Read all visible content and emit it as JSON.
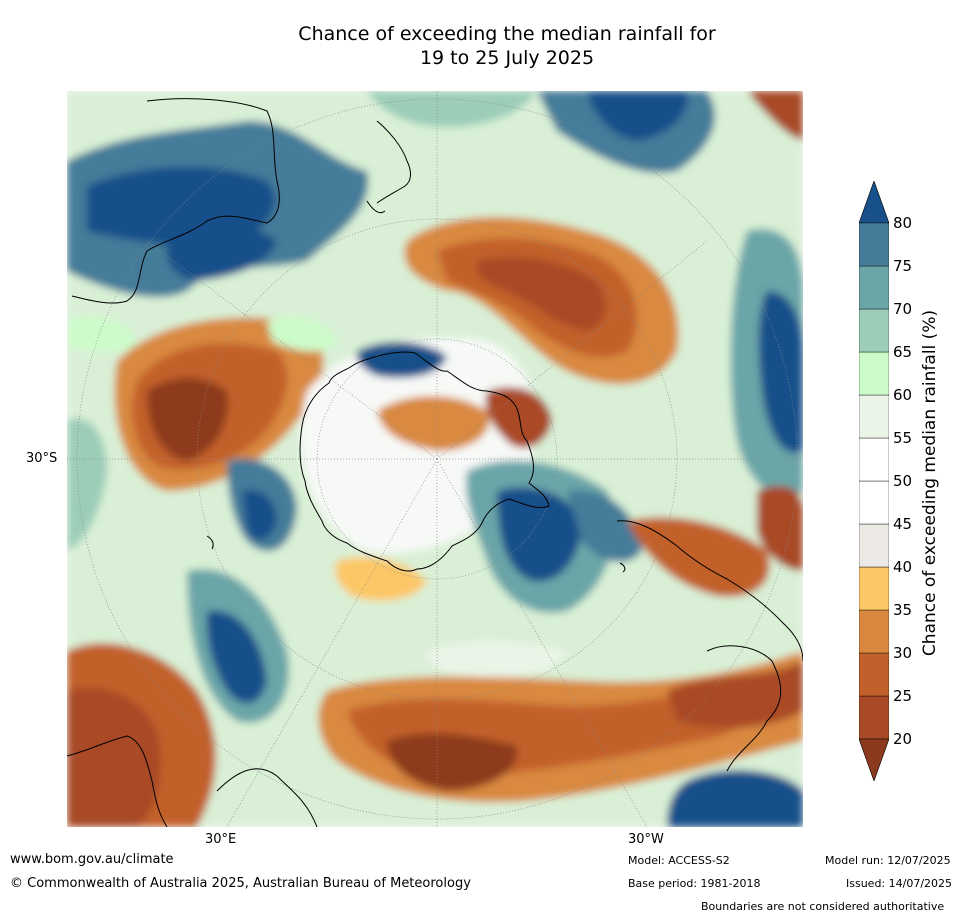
{
  "title_line1": "Chance of exceeding the median rainfall for",
  "title_line2": "19 to 25 July 2025",
  "map": {
    "latitude_label": "30°S",
    "longitude_labels": [
      "30°E",
      "30°W"
    ]
  },
  "colorbar": {
    "title": "Chance of exceeding median rainfall (%)",
    "ticks": [
      "80",
      "75",
      "70",
      "65",
      "60",
      "55",
      "50",
      "45",
      "40",
      "35",
      "30",
      "25",
      "20"
    ],
    "colors": [
      "#8c3a1e",
      "#a94a27",
      "#c2602c",
      "#d9893f",
      "#fcc766",
      "#ece9e4",
      "#ffffff",
      "#ffffff",
      "#eaf5e7",
      "#ccfcca",
      "#9bcdb8",
      "#6aa5a8",
      "#447b99",
      "#17508a"
    ]
  },
  "footer": {
    "website": "www.bom.gov.au/climate",
    "copyright": "© Commonwealth of Australia 2025, Australian Bureau of Meteorology",
    "model": "Model: ACCESS-S2",
    "base_period": "Base period: 1981-2018",
    "model_run": "Model run: 12/07/2025",
    "issued": "Issued: 14/07/2025",
    "disclaimer": "Boundaries are not considered authoritative"
  }
}
